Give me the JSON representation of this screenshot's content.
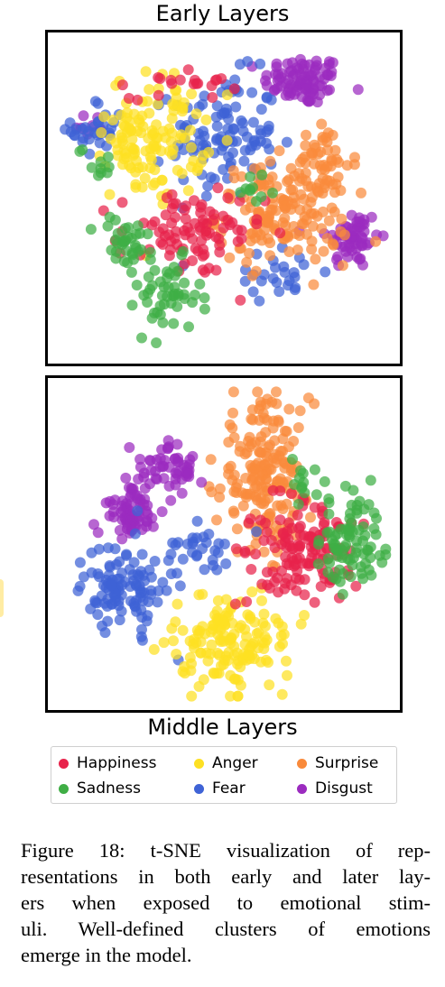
{
  "figure": {
    "top_title": "Early Layers",
    "bottom_title": "Middle Layers",
    "caption": "Figure 18: t-SNE visualization of representations in both early and later layers when exposed to emotional stimuli. Well-defined clusters of emotions emerge in the model.",
    "caption_lines": [
      "Figure 18:  t-SNE visualization of rep-",
      "resentations in both early and later lay-",
      "ers when exposed to emotional stim-",
      "uli.  Well-defined clusters of emotions",
      "emerge in the model."
    ]
  },
  "legend": [
    {
      "label": "Happiness",
      "color": "#e8234b"
    },
    {
      "label": "Anger",
      "color": "#fde023"
    },
    {
      "label": "Surprise",
      "color": "#f98a3b"
    },
    {
      "label": "Sadness",
      "color": "#3fae45"
    },
    {
      "label": "Fear",
      "color": "#3f63d6"
    },
    {
      "label": "Disgust",
      "color": "#9b2bbf"
    }
  ],
  "chart_data": [
    {
      "type": "scatter",
      "title": "Early Layers",
      "xlim": [
        0,
        100
      ],
      "ylim": [
        0,
        100
      ],
      "axes_visible": false,
      "grid": false,
      "note": "approximate cluster centers and spreads (t-SNE embedding units unlabeled)",
      "series": [
        {
          "name": "Disgust",
          "clusters": [
            {
              "cx": 74,
              "cy": 88,
              "sx": 6,
              "sy": 4,
              "n": 90
            },
            {
              "cx": 89,
              "cy": 37,
              "sx": 4,
              "sy": 5,
              "n": 60
            },
            {
              "cx": 10,
              "cy": 74,
              "sx": 3,
              "sy": 3,
              "n": 8
            }
          ]
        },
        {
          "name": "Fear",
          "clusters": [
            {
              "cx": 50,
              "cy": 70,
              "sx": 8,
              "sy": 10,
              "n": 110
            },
            {
              "cx": 12,
              "cy": 72,
              "sx": 4,
              "sy": 5,
              "n": 30
            },
            {
              "cx": 66,
              "cy": 26,
              "sx": 7,
              "sy": 4,
              "n": 25
            }
          ]
        },
        {
          "name": "Surprise",
          "clusters": [
            {
              "cx": 68,
              "cy": 45,
              "sx": 10,
              "sy": 8,
              "n": 160
            },
            {
              "cx": 80,
              "cy": 62,
              "sx": 5,
              "sy": 6,
              "n": 40
            }
          ]
        },
        {
          "name": "Anger",
          "clusters": [
            {
              "cx": 30,
              "cy": 70,
              "sx": 7,
              "sy": 10,
              "n": 110
            },
            {
              "cx": 20,
              "cy": 68,
              "sx": 3,
              "sy": 5,
              "n": 20
            }
          ]
        },
        {
          "name": "Happiness",
          "clusters": [
            {
              "cx": 40,
              "cy": 38,
              "sx": 11,
              "sy": 7,
              "n": 90
            },
            {
              "cx": 38,
              "cy": 88,
              "sx": 8,
              "sy": 3,
              "n": 20
            }
          ]
        },
        {
          "name": "Sadness",
          "clusters": [
            {
              "cx": 33,
              "cy": 18,
              "sx": 5,
              "sy": 6,
              "n": 50
            },
            {
              "cx": 20,
              "cy": 35,
              "sx": 4,
              "sy": 5,
              "n": 35
            },
            {
              "cx": 12,
              "cy": 62,
              "sx": 3,
              "sy": 3,
              "n": 10
            },
            {
              "cx": 58,
              "cy": 52,
              "sx": 4,
              "sy": 3,
              "n": 10
            }
          ]
        }
      ]
    },
    {
      "type": "scatter",
      "title": "Middle Layers",
      "xlim": [
        0,
        100
      ],
      "ylim": [
        0,
        100
      ],
      "axes_visible": false,
      "grid": false,
      "note": "approximate cluster centers and spreads (t-SNE embedding units unlabeled)",
      "series": [
        {
          "name": "Surprise",
          "clusters": [
            {
              "cx": 62,
              "cy": 72,
              "sx": 7,
              "sy": 12,
              "n": 190
            }
          ]
        },
        {
          "name": "Disgust",
          "clusters": [
            {
              "cx": 34,
              "cy": 74,
              "sx": 6,
              "sy": 4,
              "n": 55
            },
            {
              "cx": 21,
              "cy": 60,
              "sx": 4,
              "sy": 4,
              "n": 70
            }
          ]
        },
        {
          "name": "Fear",
          "clusters": [
            {
              "cx": 20,
              "cy": 36,
              "sx": 6,
              "sy": 7,
              "n": 110
            },
            {
              "cx": 44,
              "cy": 48,
              "sx": 6,
              "sy": 4,
              "n": 30
            }
          ]
        },
        {
          "name": "Anger",
          "clusters": [
            {
              "cx": 53,
              "cy": 18,
              "sx": 9,
              "sy": 8,
              "n": 150
            }
          ]
        },
        {
          "name": "Happiness",
          "clusters": [
            {
              "cx": 74,
              "cy": 48,
              "sx": 8,
              "sy": 8,
              "n": 130
            }
          ]
        },
        {
          "name": "Sadness",
          "clusters": [
            {
              "cx": 88,
              "cy": 50,
              "sx": 5,
              "sy": 8,
              "n": 85
            },
            {
              "cx": 74,
              "cy": 70,
              "sx": 3,
              "sy": 4,
              "n": 12
            }
          ]
        }
      ]
    }
  ]
}
